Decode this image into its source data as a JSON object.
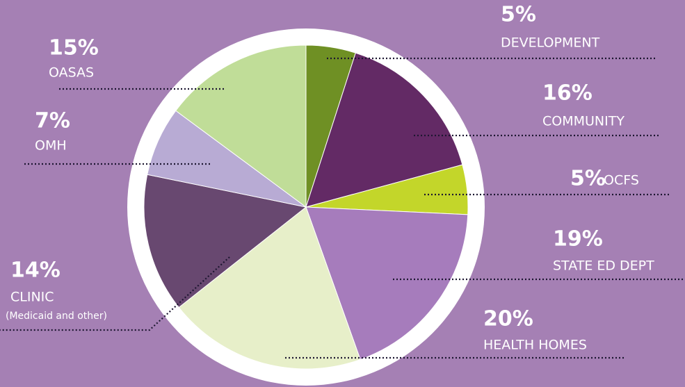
{
  "chart_data": {
    "type": "pie",
    "categories": [
      "DEVELOPMENT",
      "COMMUNITY",
      "OCFS",
      "STATE ED DEPT",
      "HEALTH HOMES",
      "CLINIC",
      "OMH",
      "OASAS"
    ],
    "values": [
      5,
      16,
      5,
      19,
      20,
      14,
      7,
      15
    ],
    "value_labels": [
      "5%",
      "16%",
      "5%",
      "19%",
      "20%",
      "14%",
      "7%",
      "15%"
    ],
    "colors": [
      "#6f9024",
      "#632a65",
      "#c3d62a",
      "#a67cbc",
      "#e7efc9",
      "#684870",
      "#b8abd4",
      "#c0dd98"
    ],
    "annotations": [
      "(Medicaid and other)"
    ]
  }
}
